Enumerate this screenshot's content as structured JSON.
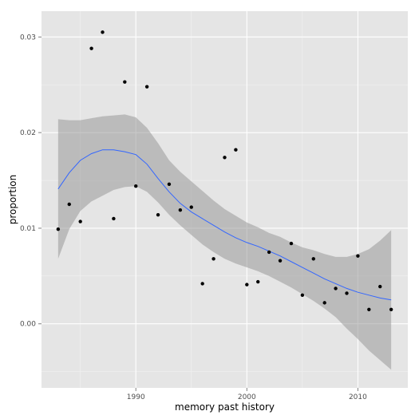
{
  "chart_data": {
    "type": "scatter",
    "xlabel": "memory past history",
    "ylabel": "proportion",
    "xlim": [
      1981.5,
      2014.5
    ],
    "ylim": [
      -0.0067,
      0.0327
    ],
    "x_ticks": [
      1990,
      2000,
      2010
    ],
    "x_tick_labels": [
      "1990",
      "2000",
      "2010"
    ],
    "y_ticks": [
      0.0,
      0.01,
      0.02,
      0.03
    ],
    "y_tick_labels": [
      "0.00",
      "0.01",
      "0.02",
      "0.03"
    ],
    "grid": true,
    "points": {
      "x": [
        1983,
        1984,
        1985,
        1986,
        1987,
        1988,
        1989,
        1990,
        1991,
        1992,
        1993,
        1994,
        1995,
        1996,
        1997,
        1998,
        1999,
        2000,
        2001,
        2002,
        2003,
        2004,
        2005,
        2006,
        2007,
        2008,
        2009,
        2010,
        2011,
        2012,
        2013
      ],
      "y": [
        0.0099,
        0.0125,
        0.0107,
        0.0288,
        0.0305,
        0.011,
        0.0253,
        0.0144,
        0.0248,
        0.0114,
        0.0146,
        0.0119,
        0.0122,
        0.0042,
        0.0068,
        0.0174,
        0.0182,
        0.0041,
        0.0044,
        0.0075,
        0.0066,
        0.0084,
        0.003,
        0.0068,
        0.0022,
        0.0037,
        0.0032,
        0.0071,
        0.0015,
        0.0039,
        0.0015
      ]
    },
    "smooth": {
      "x": [
        1983,
        1984,
        1985,
        1986,
        1987,
        1988,
        1989,
        1990,
        1991,
        1992,
        1993,
        1994,
        1995,
        1996,
        1997,
        1998,
        1999,
        2000,
        2001,
        2002,
        2003,
        2004,
        2005,
        2006,
        2007,
        2008,
        2009,
        2010,
        2011,
        2012,
        2013
      ],
      "y": [
        0.0141,
        0.0158,
        0.0171,
        0.0178,
        0.0182,
        0.0182,
        0.018,
        0.0177,
        0.0167,
        0.0152,
        0.0138,
        0.0126,
        0.0117,
        0.011,
        0.0103,
        0.0096,
        0.009,
        0.0085,
        0.0081,
        0.0076,
        0.0071,
        0.0065,
        0.0059,
        0.0053,
        0.0047,
        0.0042,
        0.0037,
        0.0033,
        0.003,
        0.0027,
        0.0025
      ],
      "lower": [
        0.0068,
        0.0099,
        0.0118,
        0.0128,
        0.0134,
        0.014,
        0.0143,
        0.0144,
        0.0138,
        0.0127,
        0.0114,
        0.0103,
        0.0093,
        0.0083,
        0.0075,
        0.0068,
        0.0063,
        0.0059,
        0.0055,
        0.005,
        0.0044,
        0.0038,
        0.0031,
        0.0024,
        0.0016,
        0.0007,
        -0.0005,
        -0.0016,
        -0.0028,
        -0.0038,
        -0.0048
      ],
      "upper": [
        0.0214,
        0.0213,
        0.0213,
        0.0215,
        0.0217,
        0.0218,
        0.0219,
        0.0216,
        0.0205,
        0.0189,
        0.0171,
        0.0159,
        0.0149,
        0.0139,
        0.0129,
        0.012,
        0.0113,
        0.0106,
        0.0101,
        0.0095,
        0.0091,
        0.0085,
        0.008,
        0.0077,
        0.0073,
        0.007,
        0.007,
        0.0073,
        0.0078,
        0.0087,
        0.0098
      ]
    },
    "colors": {
      "panel_bg": "#e5e5e5",
      "grid_major": "#ffffff",
      "grid_minor": "#f2f2f2",
      "ribbon": "#999999",
      "ribbon_opacity": 0.55,
      "line": "#3366ff",
      "point": "#000000"
    }
  }
}
